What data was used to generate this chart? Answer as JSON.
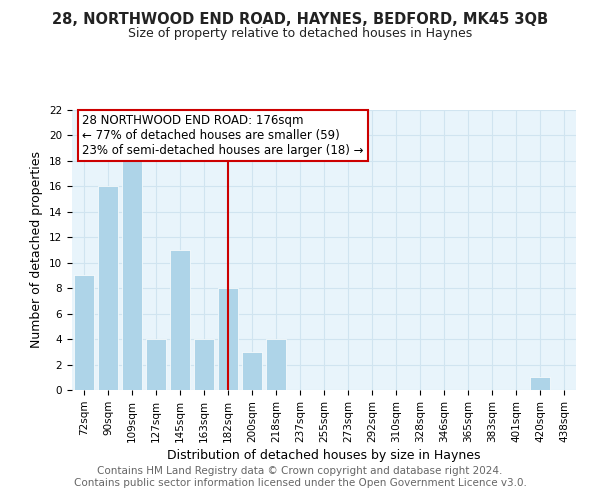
{
  "title": "28, NORTHWOOD END ROAD, HAYNES, BEDFORD, MK45 3QB",
  "subtitle": "Size of property relative to detached houses in Haynes",
  "xlabel": "Distribution of detached houses by size in Haynes",
  "ylabel": "Number of detached properties",
  "bar_labels": [
    "72sqm",
    "90sqm",
    "109sqm",
    "127sqm",
    "145sqm",
    "163sqm",
    "182sqm",
    "200sqm",
    "218sqm",
    "237sqm",
    "255sqm",
    "273sqm",
    "292sqm",
    "310sqm",
    "328sqm",
    "346sqm",
    "365sqm",
    "383sqm",
    "401sqm",
    "420sqm",
    "438sqm"
  ],
  "bar_values": [
    9,
    16,
    18,
    4,
    11,
    4,
    8,
    3,
    4,
    0,
    0,
    0,
    0,
    0,
    0,
    0,
    0,
    0,
    0,
    1,
    0
  ],
  "bar_color": "#aed4e8",
  "vline_x": 6,
  "vline_color": "#cc0000",
  "annotation_line1": "28 NORTHWOOD END ROAD: 176sqm",
  "annotation_line2": "← 77% of detached houses are smaller (59)",
  "annotation_line3": "23% of semi-detached houses are larger (18) →",
  "annotation_box_color": "#ffffff",
  "annotation_box_edge": "#cc0000",
  "ylim": [
    0,
    22
  ],
  "yticks": [
    0,
    2,
    4,
    6,
    8,
    10,
    12,
    14,
    16,
    18,
    20,
    22
  ],
  "footer": "Contains HM Land Registry data © Crown copyright and database right 2024.\nContains public sector information licensed under the Open Government Licence v3.0.",
  "grid_color": "#d0e4f0",
  "bg_color": "#e8f4fb",
  "title_fontsize": 10.5,
  "subtitle_fontsize": 9,
  "xlabel_fontsize": 9,
  "ylabel_fontsize": 9,
  "footer_fontsize": 7.5,
  "annotation_fontsize": 8.5,
  "tick_fontsize": 7.5
}
